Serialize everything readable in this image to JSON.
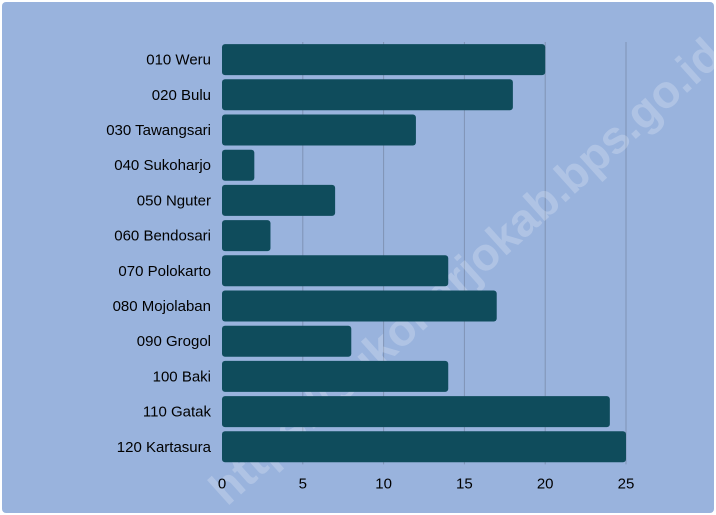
{
  "chart_data": {
    "type": "bar",
    "orientation": "horizontal",
    "categories": [
      "010 Weru",
      "020 Bulu",
      "030 Tawangsari",
      "040 Sukoharjo",
      "050 Nguter",
      "060 Bendosari",
      "070 Polokarto",
      "080 Mojolaban",
      "090 Grogol",
      "100 Baki",
      "110 Gatak",
      "120 Kartasura"
    ],
    "values": [
      20,
      18,
      12,
      2,
      7,
      3,
      14,
      17,
      8,
      14,
      24,
      25
    ],
    "xlim": [
      0,
      25
    ],
    "xticks": [
      "0",
      "5",
      "10",
      "15",
      "20",
      "25"
    ],
    "grid": true,
    "title": "",
    "xlabel": "",
    "ylabel": ""
  },
  "watermark": "https://sukoharjokab.bps.go.id",
  "colors": {
    "background": "#99b3dd",
    "bar": "#0f4c5c",
    "grid": "#7f93b5"
  }
}
